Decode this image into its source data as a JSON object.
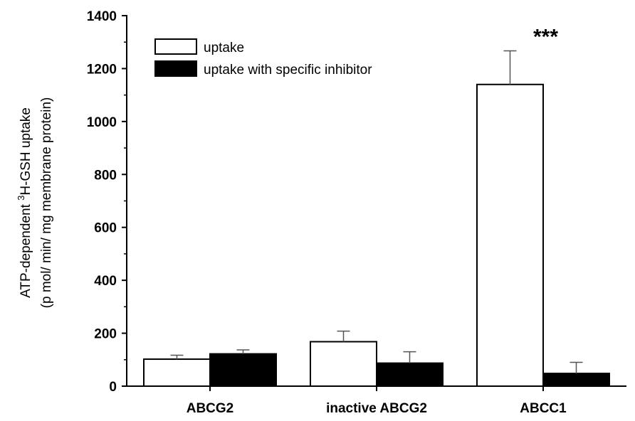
{
  "chart_data": {
    "type": "bar",
    "categories": [
      "ABCG2",
      "inactive ABCG2",
      "ABCC1"
    ],
    "series": [
      {
        "name": "uptake",
        "values": [
          102,
          168,
          1140
        ],
        "errors": [
          15,
          40,
          127
        ],
        "fill": "#ffffff",
        "stroke": "#000000"
      },
      {
        "name": "uptake with specific inhibitor",
        "values": [
          122,
          87,
          48
        ],
        "errors": [
          15,
          43,
          42
        ],
        "fill": "#000000",
        "stroke": "#000000"
      }
    ],
    "ylim": [
      0,
      1400
    ],
    "yticks": [
      0,
      200,
      400,
      600,
      800,
      1000,
      1200,
      1400
    ],
    "ylabel_line1_pre": "ATP-dependent ",
    "ylabel_sup": "3",
    "ylabel_line1_post": "H-GSH uptake",
    "ylabel_line2": "(p mol/ min/ mg membrane protein)",
    "legend_position": "top-left",
    "grid": false,
    "annotations": [
      {
        "text": "***",
        "category": "ABCC1",
        "series": 0
      }
    ]
  }
}
